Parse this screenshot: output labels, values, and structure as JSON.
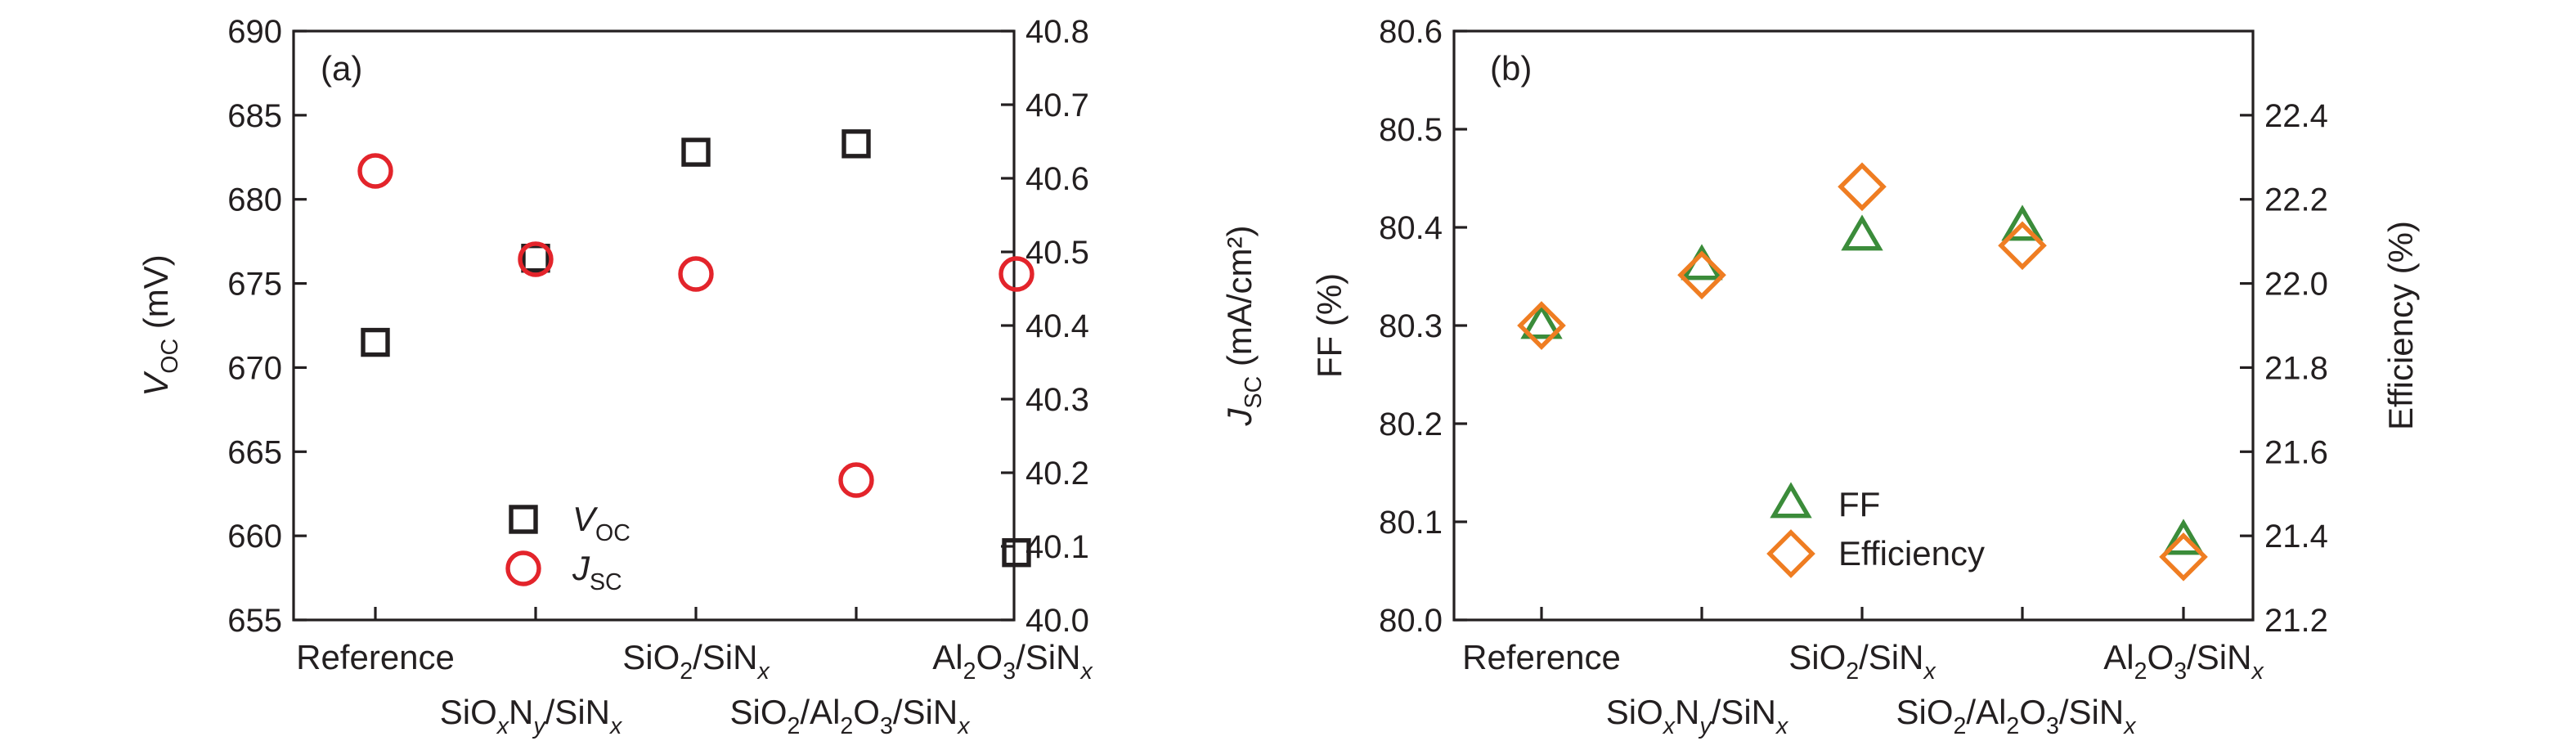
{
  "chart_data": [
    {
      "type": "scatter",
      "panel_label": "(a)",
      "categories": [
        "Reference",
        "SiO_xN_y/SiN_x",
        "SiO_2/SiN_x",
        "SiO_2/Al_2O_3/SiN_x",
        "Al_2O_3/SiN_x"
      ],
      "ylabel_left": "V_OC (mV)",
      "ylabel_right": "J_SC (mA/cm²)",
      "ylim_left": [
        655,
        690
      ],
      "ylim_right": [
        40.0,
        40.8
      ],
      "yticks_left": [
        655,
        660,
        665,
        670,
        675,
        680,
        685,
        690
      ],
      "yticks_right": [
        "40.0",
        "40.1",
        "40.2",
        "40.3",
        "40.4",
        "40.5",
        "40.6",
        "40.7",
        "40.8"
      ],
      "grid": false,
      "legend_position": "bottom-left",
      "series": [
        {
          "name": "V_OC",
          "axis": "left",
          "marker": "square",
          "color": "#231f20",
          "values": [
            671.5,
            676.5,
            682.8,
            683.3,
            659.0
          ]
        },
        {
          "name": "J_SC",
          "axis": "right",
          "marker": "circle",
          "color": "#e3242b",
          "values": [
            40.61,
            40.49,
            40.47,
            40.19,
            40.47
          ]
        }
      ]
    },
    {
      "type": "scatter",
      "panel_label": "(b)",
      "categories": [
        "Reference",
        "SiO_xN_y/SiN_x",
        "SiO_2/SiN_x",
        "SiO_2/Al_2O_3/SiN_x",
        "Al_2O_3/SiN_x"
      ],
      "ylabel_left": "FF (%)",
      "ylabel_right": "Efficiency (%)",
      "ylim_left": [
        80.0,
        80.6
      ],
      "ylim_right": [
        21.2,
        22.6
      ],
      "yticks_left": [
        "80.0",
        "80.1",
        "80.2",
        "80.3",
        "80.4",
        "80.5",
        "80.6"
      ],
      "yticks_right": [
        "21.2",
        "21.4",
        "21.6",
        "21.8",
        "22.0",
        "22.2",
        "22.4"
      ],
      "grid": false,
      "legend_position": "bottom-center",
      "series": [
        {
          "name": "FF",
          "axis": "left",
          "marker": "triangle",
          "color": "#3b8c3a",
          "values": [
            80.3,
            80.36,
            80.39,
            80.4,
            80.08
          ]
        },
        {
          "name": "Efficiency",
          "axis": "right",
          "marker": "diamond",
          "color": "#ef7d22",
          "values": [
            21.9,
            22.02,
            22.23,
            22.09,
            21.35
          ]
        }
      ]
    }
  ]
}
